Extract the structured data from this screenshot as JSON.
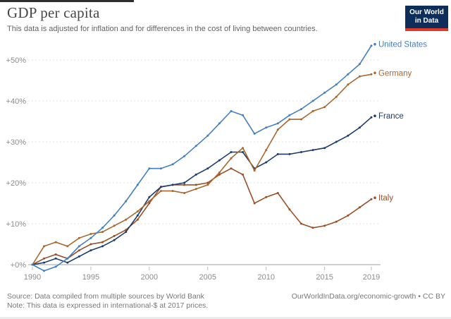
{
  "header": {
    "title": "GDP per capita",
    "subtitle": "This data is adjusted for inflation and for differences in the cost of living between countries."
  },
  "logo": {
    "line1": "Our World",
    "line2": "in Data",
    "bg_color": "#0d2e5a",
    "accent_color": "#e0362c"
  },
  "chart_data": {
    "type": "line",
    "title": "GDP per capita",
    "xlabel": "",
    "ylabel": "",
    "x": [
      1990,
      1991,
      1992,
      1993,
      1994,
      1995,
      1996,
      1997,
      1998,
      1999,
      2000,
      2001,
      2002,
      2003,
      2004,
      2005,
      2006,
      2007,
      2008,
      2009,
      2010,
      2011,
      2012,
      2013,
      2014,
      2015,
      2016,
      2017,
      2018,
      2019
    ],
    "series": [
      {
        "name": "Italy",
        "color": "#9b4f26",
        "values": [
          0,
          1.5,
          2.5,
          1.5,
          3.5,
          5,
          5.5,
          7,
          8.5,
          11,
          15,
          19,
          19.5,
          19.5,
          19.5,
          20,
          22,
          23.5,
          22,
          15,
          16.5,
          17.5,
          13.5,
          10,
          9,
          9.5,
          10.5,
          12,
          14,
          16
        ]
      },
      {
        "name": "France",
        "color": "#1f3d6b",
        "values": [
          0,
          0.5,
          1.5,
          0.5,
          2,
          3.5,
          4.5,
          6,
          8,
          12,
          16.5,
          19,
          19.5,
          20,
          22,
          23.5,
          25.5,
          27.5,
          27.5,
          23.5,
          25,
          27,
          27,
          27.5,
          28,
          28.5,
          30,
          31.5,
          33.5,
          36
        ]
      },
      {
        "name": "Germany",
        "color": "#a8682f",
        "values": [
          0,
          4.5,
          5.5,
          4.5,
          6.5,
          7.5,
          8,
          9.5,
          11,
          13,
          15.5,
          18,
          18,
          17.5,
          18.5,
          19.5,
          22.5,
          26,
          28.5,
          23,
          28,
          33,
          35.5,
          35.5,
          37.5,
          38.5,
          41,
          44,
          46,
          46.5
        ]
      },
      {
        "name": "United States",
        "color": "#4380c0",
        "values": [
          0,
          -1.5,
          -0.5,
          1.5,
          4.5,
          6.5,
          9,
          12,
          15.5,
          19.5,
          23.5,
          23.5,
          24.5,
          26.5,
          29,
          31.5,
          34.5,
          37.5,
          36.5,
          32,
          33.5,
          34.5,
          36.5,
          38,
          40,
          42,
          44,
          46.5,
          49,
          53.5
        ]
      }
    ],
    "ylim": [
      -3,
      56
    ],
    "yticks": [
      0,
      10,
      20,
      30,
      40,
      50
    ],
    "ytick_labels": [
      "+0%",
      "+10%",
      "+20%",
      "+30%",
      "+40%",
      "+50%"
    ],
    "xticks": [
      1990,
      1995,
      2000,
      2005,
      2010,
      2015,
      2019
    ],
    "grid": "horizontal dashed",
    "legend_position": "line-end-labels-right",
    "axis_color": "#a0a0a0",
    "grid_color": "#e0e0e0",
    "tick_label_color": "#8c8c8c"
  },
  "footer": {
    "source": "Source: Data compiled from multiple sources by World Bank",
    "note": "Note: This data is expressed in international-$ at 2017 prices.",
    "credit": "OurWorldInData.org/economic-growth • CC BY"
  }
}
